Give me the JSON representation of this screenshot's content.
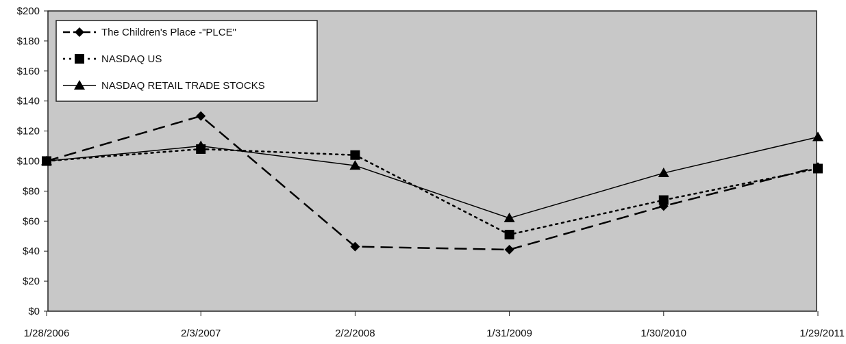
{
  "chart_data": {
    "type": "line",
    "title": "",
    "xlabel": "",
    "ylabel": "",
    "categories": [
      "1/28/2006",
      "2/3/2007",
      "2/2/2008",
      "1/31/2009",
      "1/30/2010",
      "1/29/2011"
    ],
    "ylim": [
      0,
      200
    ],
    "yticks": [
      0,
      20,
      40,
      60,
      80,
      100,
      120,
      140,
      160,
      180,
      200
    ],
    "ytick_labels": [
      "$0",
      "$20",
      "$40",
      "$60",
      "$80",
      "$100",
      "$120",
      "$140",
      "$160",
      "$180",
      "$200"
    ],
    "grid": false,
    "legend_position": "top-left",
    "plot_background": "#c8c8c8",
    "series": [
      {
        "name": "The Children's Place -\"PLCE\"",
        "values": [
          100,
          130,
          43,
          41,
          70,
          96
        ],
        "marker": "diamond",
        "line_style": "long-dash",
        "color": "#000000"
      },
      {
        "name": "NASDAQ US",
        "values": [
          100,
          108,
          104,
          51,
          74,
          95
        ],
        "marker": "square",
        "line_style": "dotted",
        "color": "#000000"
      },
      {
        "name": "NASDAQ RETAIL TRADE STOCKS",
        "values": [
          100,
          110,
          97,
          62,
          92,
          116
        ],
        "marker": "triangle",
        "line_style": "solid",
        "color": "#000000"
      }
    ]
  }
}
